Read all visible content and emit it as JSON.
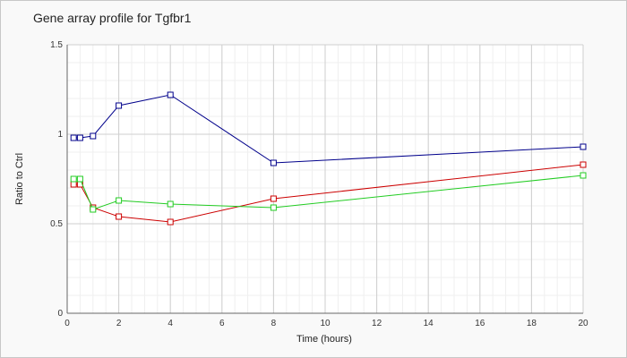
{
  "chart_data": {
    "type": "line",
    "title": "Gene array profile for Tgfbr1",
    "xlabel": "Time (hours)",
    "ylabel": "Ratio to Ctrl",
    "xlim": [
      0,
      20
    ],
    "ylim": [
      0,
      1.5
    ],
    "xticks": [
      "0",
      "2",
      "4",
      "6",
      "8",
      "10",
      "12",
      "14",
      "16",
      "18",
      "20"
    ],
    "yticks": [
      "0",
      "0.5",
      "1",
      "1.5"
    ],
    "grid": true,
    "legend": "none",
    "series": [
      {
        "color": "#00008b",
        "x": [
          0.25,
          0.5,
          1,
          2,
          4,
          8,
          20
        ],
        "y": [
          0.98,
          0.98,
          0.99,
          1.16,
          1.22,
          0.84,
          0.93
        ]
      },
      {
        "color": "#cc0000",
        "x": [
          0.25,
          0.5,
          1,
          2,
          4,
          8,
          20
        ],
        "y": [
          0.72,
          0.72,
          0.59,
          0.54,
          0.51,
          0.64,
          0.83
        ]
      },
      {
        "color": "#22cc22",
        "x": [
          0.25,
          0.5,
          1,
          2,
          4,
          8,
          20
        ],
        "y": [
          0.75,
          0.75,
          0.58,
          0.63,
          0.61,
          0.59,
          0.77
        ]
      }
    ]
  }
}
